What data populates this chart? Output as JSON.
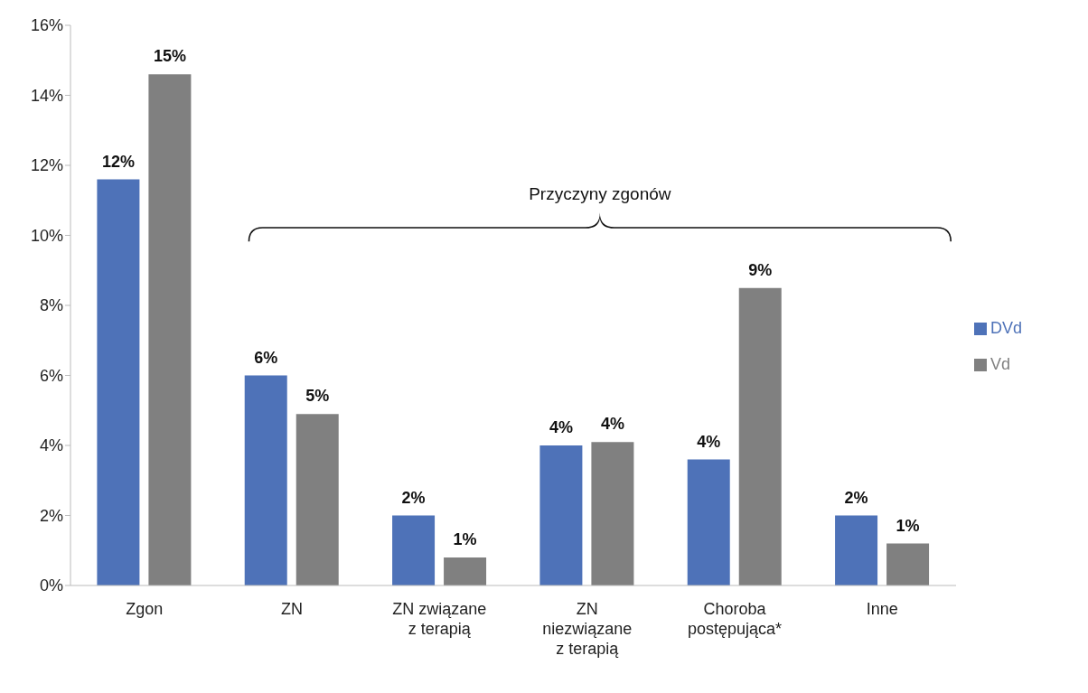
{
  "chart_data": {
    "type": "bar",
    "categories": [
      "Zgon",
      "ZN",
      "ZN związane z terapią",
      "ZN niezwiązane z terapią",
      "Choroba postępująca*",
      "Inne"
    ],
    "series": [
      {
        "name": "DVd",
        "color": "#4e72b8",
        "values": [
          11.6,
          6.0,
          2.0,
          4.0,
          3.6,
          2.0
        ],
        "value_labels": [
          "12%",
          "6%",
          "2%",
          "4%",
          "4%",
          "2%"
        ]
      },
      {
        "name": "Vd",
        "color": "#808080",
        "values": [
          14.6,
          4.9,
          0.8,
          4.1,
          8.5,
          1.2
        ],
        "value_labels": [
          "15%",
          "5%",
          "1%",
          "4%",
          "9%",
          "1%"
        ]
      }
    ],
    "ylim": [
      0,
      16
    ],
    "yticks": [
      {
        "value": 0,
        "label": "0%"
      },
      {
        "value": 2,
        "label": "2%"
      },
      {
        "value": 4,
        "label": "4%"
      },
      {
        "value": 6,
        "label": "6%"
      },
      {
        "value": 8,
        "label": "8%"
      },
      {
        "value": 10,
        "label": "10%"
      },
      {
        "value": 12,
        "label": "12%"
      },
      {
        "value": 14,
        "label": "14%"
      },
      {
        "value": 16,
        "label": "16%"
      }
    ],
    "annotations": [
      "Przyczyny zgonów"
    ],
    "grid": false,
    "legend": "right"
  }
}
